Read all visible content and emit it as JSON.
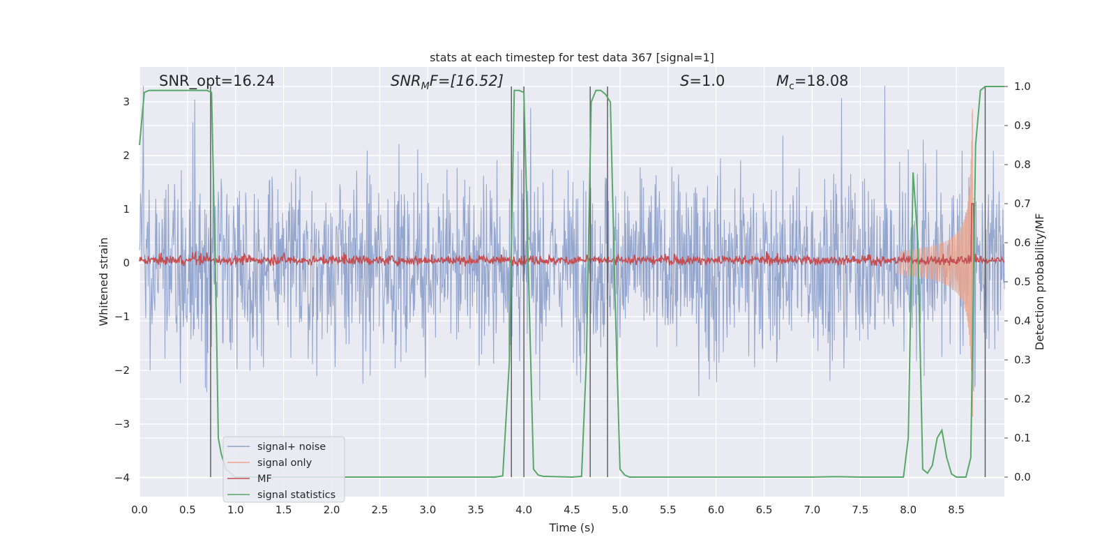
{
  "chart_data": {
    "type": "line",
    "title": "stats at each timestep for test data 367 [signal=1]",
    "xlabel": "Time (s)",
    "ylabel": "Whitened strain",
    "y2label": "Detection probability/MF",
    "xlim": [
      0,
      9
    ],
    "ylim": [
      -4.35,
      3.65
    ],
    "y2lim": [
      -0.05,
      1.05
    ],
    "xticks": [
      0,
      0.5,
      1,
      1.5,
      2,
      2.5,
      3,
      3.5,
      4,
      4.5,
      5,
      5.5,
      6,
      6.5,
      7,
      7.5,
      8,
      8.5
    ],
    "xtick_labels": [
      "0.0",
      "0.5",
      "1.0",
      "1.5",
      "2.0",
      "2.5",
      "3.0",
      "3.5",
      "4.0",
      "4.5",
      "5.0",
      "5.5",
      "6.0",
      "6.5",
      "7.0",
      "7.5",
      "8.0",
      "8.5"
    ],
    "yticks": [
      -4,
      -3,
      -2,
      -1,
      0,
      1,
      2,
      3
    ],
    "ytick_labels": [
      "−4",
      "−3",
      "−2",
      "−1",
      "0",
      "1",
      "2",
      "3"
    ],
    "y2ticks": [
      0,
      0.1,
      0.2,
      0.3,
      0.4,
      0.5,
      0.6,
      0.7,
      0.8,
      0.9,
      1.0
    ],
    "y2tick_labels": [
      "0.0",
      "0.1",
      "0.2",
      "0.3",
      "0.4",
      "0.5",
      "0.6",
      "0.7",
      "0.8",
      "0.9",
      "1.0"
    ],
    "grid": true,
    "legend_position": "lower-left",
    "annotations": {
      "snr_opt": "SNR_opt=16.24",
      "snr_mf_main": "SNR",
      "snr_mf_sub": "M",
      "snr_mf_rest": "F=[16.52]",
      "s_main": "S",
      "s_rest": "=1.0",
      "mc_main": "M",
      "mc_sub": "c",
      "mc_rest": "=18.08"
    },
    "series": [
      {
        "name": "signal+ noise",
        "color": "#8c9fca",
        "axis": "left",
        "description_values": "noise band approx ±1.5 with peaks to about ±3.3 over 0–9 s"
      },
      {
        "name": "signal only",
        "color": "#e9a68f",
        "axis": "left",
        "chirp": {
          "start": 7.9,
          "peak_time": 8.67,
          "peak_amplitude": 2.9
        }
      },
      {
        "name": "MF",
        "color": "#c44e52",
        "axis": "right",
        "baseline": 0.555,
        "peak": {
          "x": 8.67,
          "y": 0.7
        }
      },
      {
        "name": "signal statistics",
        "color": "#55a868",
        "axis": "right",
        "x": [
          0,
          0.05,
          0.1,
          0.2,
          0.3,
          0.4,
          0.5,
          0.6,
          0.7,
          0.75,
          0.8,
          0.82,
          0.85,
          0.9,
          1.0,
          1.5,
          2.0,
          2.5,
          3.0,
          3.5,
          3.7,
          3.78,
          3.85,
          3.9,
          3.95,
          4.0,
          4.05,
          4.1,
          4.15,
          4.2,
          4.5,
          4.6,
          4.65,
          4.7,
          4.75,
          4.8,
          4.85,
          4.9,
          4.95,
          5.0,
          5.05,
          5.1,
          5.5,
          6.0,
          6.5,
          7.0,
          7.25,
          7.5,
          7.95,
          8.0,
          8.05,
          8.1,
          8.15,
          8.2,
          8.25,
          8.3,
          8.35,
          8.4,
          8.45,
          8.5,
          8.55,
          8.6,
          8.65,
          8.7,
          8.75,
          8.8,
          8.85,
          8.9,
          8.95,
          9.0
        ],
        "values": [
          0.85,
          0.985,
          0.99,
          0.99,
          0.99,
          0.99,
          0.99,
          0.99,
          0.99,
          0.985,
          0.4,
          0.1,
          0.06,
          0.02,
          0.0,
          0.0,
          0.0,
          0.0,
          0.0,
          0.0,
          0.0,
          0.003,
          0.3,
          0.99,
          0.99,
          0.985,
          0.5,
          0.02,
          0.005,
          0.002,
          0.0,
          0.002,
          0.3,
          0.96,
          0.99,
          0.99,
          0.98,
          0.96,
          0.45,
          0.02,
          0.005,
          0.0,
          0.0,
          0.0,
          0.0,
          0.0,
          0.001,
          0.0,
          0.0,
          0.1,
          0.78,
          0.6,
          0.02,
          0.01,
          0.03,
          0.1,
          0.12,
          0.05,
          0.008,
          0.0,
          0.0,
          0.0,
          0.05,
          0.85,
          0.99,
          1.0,
          1.0,
          1.0,
          1.0,
          1.0
        ]
      }
    ],
    "vlines": [
      0.74,
      3.87,
      4.0,
      4.69,
      4.87,
      8.8
    ],
    "vline_color": "#555555"
  }
}
